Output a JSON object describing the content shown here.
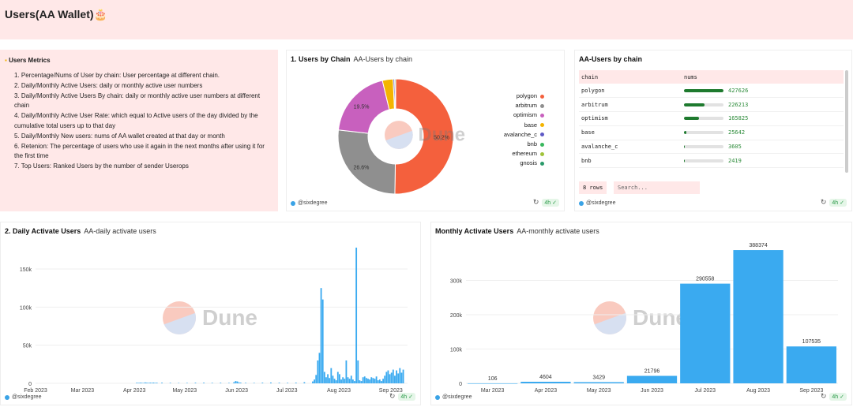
{
  "app": {
    "title": "Users(AA Wallet)🎂"
  },
  "metrics": {
    "title": "Users Metrics",
    "items": [
      "1. Percentage/Nums of User by chain: User percentage at different chain.",
      "2. Daily/Monthly Active Users: daily or monthly active user numbers",
      "3. Daily/Monthly Active Users By chain: daily or monthly active user numbers at different chain",
      "4. Daily/Monthly Active User Rate: which equal to Active users of the day divided by the cumulative total users up to that day",
      "5. Daily/Monthly New users: nums of AA wallet created at that day or month",
      "6. Retenion: The percentage of users who use it again in the next months after using it for the first time",
      "7. Top Users: Ranked Users by the number of sender Userops"
    ]
  },
  "common": {
    "user": "@sixdegree",
    "age": "4h",
    "watermark": "Dune"
  },
  "pie_card": {
    "title": "1. Users by Chain",
    "subtitle": "AA-Users by chain",
    "legend": [
      {
        "name": "polygon",
        "color": "#f4603d"
      },
      {
        "name": "arbitrum",
        "color": "#8f8f8f"
      },
      {
        "name": "optimism",
        "color": "#c860be"
      },
      {
        "name": "base",
        "color": "#f4b400"
      },
      {
        "name": "avalanche_c",
        "color": "#5e5ac6"
      },
      {
        "name": "bnb",
        "color": "#39b85e"
      },
      {
        "name": "ethereum",
        "color": "#a0c33a"
      },
      {
        "name": "gnosis",
        "color": "#2a9a6a"
      }
    ]
  },
  "table_card": {
    "title": "AA-Users by chain",
    "columns": [
      "chain",
      "nums"
    ],
    "rows": [
      {
        "chain": "polygon",
        "nums": "427626",
        "frac": 1.0
      },
      {
        "chain": "arbitrum",
        "nums": "226213",
        "frac": 0.529
      },
      {
        "chain": "optimism",
        "nums": "165825",
        "frac": 0.388
      },
      {
        "chain": "base",
        "nums": "25642",
        "frac": 0.06
      },
      {
        "chain": "avalanche_c",
        "nums": "3605",
        "frac": 0.008
      },
      {
        "chain": "bnb",
        "nums": "2419",
        "frac": 0.006
      }
    ],
    "rows_label": "8 rows",
    "search_placeholder": "Search..."
  },
  "daily_card": {
    "title": "2. Daily Activate Users",
    "subtitle": "AA-daily activate users"
  },
  "monthly_card": {
    "title": "Monthly Activate Users",
    "subtitle": "AA-monthly activate users"
  },
  "chart_data": [
    {
      "type": "pie",
      "title": "1. Users by Chain",
      "categories": [
        "polygon",
        "arbitrum",
        "optimism",
        "base",
        "avalanche_c",
        "bnb",
        "ethereum",
        "gnosis"
      ],
      "values": [
        427626,
        226213,
        165825,
        25642,
        3605,
        2419,
        0,
        0
      ],
      "labels": [
        "50.2%",
        "26.6%",
        "19.5%"
      ]
    },
    {
      "type": "bar",
      "title": "2. Daily Activate Users",
      "x_ticks": [
        "Feb 2023",
        "Mar 2023",
        "Apr 2023",
        "May 2023",
        "Jun 2023",
        "Jul 2023",
        "Aug 2023",
        "Sep 2023"
      ],
      "y_ticks": [
        "0",
        "50k",
        "100k",
        "150k"
      ],
      "ylim": [
        0,
        180000
      ],
      "xlim_days": [
        0,
        222
      ],
      "values": [
        [
          60,
          800
        ],
        [
          61,
          600
        ],
        [
          62,
          900
        ],
        [
          63,
          700
        ],
        [
          64,
          500
        ],
        [
          65,
          1200
        ],
        [
          66,
          800
        ],
        [
          67,
          600
        ],
        [
          68,
          900
        ],
        [
          69,
          700
        ],
        [
          70,
          1000
        ],
        [
          71,
          600
        ],
        [
          72,
          800
        ],
        [
          75,
          900
        ],
        [
          80,
          700
        ],
        [
          85,
          500
        ],
        [
          90,
          600
        ],
        [
          95,
          800
        ],
        [
          100,
          900
        ],
        [
          105,
          700
        ],
        [
          110,
          800
        ],
        [
          115,
          600
        ],
        [
          118,
          1500
        ],
        [
          119,
          3000
        ],
        [
          120,
          2500
        ],
        [
          121,
          1200
        ],
        [
          122,
          900
        ],
        [
          125,
          700
        ],
        [
          130,
          600
        ],
        [
          135,
          900
        ],
        [
          140,
          1100
        ],
        [
          145,
          800
        ],
        [
          150,
          700
        ],
        [
          155,
          900
        ],
        [
          160,
          1500
        ],
        [
          165,
          2500
        ],
        [
          166,
          5000
        ],
        [
          167,
          11000
        ],
        [
          168,
          30000
        ],
        [
          169,
          40000
        ],
        [
          170,
          125000
        ],
        [
          171,
          110000
        ],
        [
          172,
          15000
        ],
        [
          173,
          8000
        ],
        [
          174,
          12000
        ],
        [
          175,
          7000
        ],
        [
          176,
          20000
        ],
        [
          177,
          10000
        ],
        [
          178,
          6000
        ],
        [
          179,
          4000
        ],
        [
          180,
          15000
        ],
        [
          181,
          12000
        ],
        [
          182,
          5000
        ],
        [
          183,
          8000
        ],
        [
          184,
          6000
        ],
        [
          185,
          30000
        ],
        [
          186,
          8000
        ],
        [
          187,
          6000
        ],
        [
          188,
          10000
        ],
        [
          189,
          5000
        ],
        [
          190,
          3000
        ],
        [
          191,
          178000
        ],
        [
          192,
          30000
        ],
        [
          193,
          4000
        ],
        [
          194,
          3000
        ],
        [
          195,
          8000
        ],
        [
          196,
          9000
        ],
        [
          197,
          7000
        ],
        [
          198,
          6000
        ],
        [
          199,
          5000
        ],
        [
          200,
          8000
        ],
        [
          201,
          7000
        ],
        [
          202,
          6000
        ],
        [
          203,
          9000
        ],
        [
          204,
          4000
        ],
        [
          205,
          5000
        ],
        [
          206,
          3000
        ],
        [
          207,
          6000
        ],
        [
          208,
          10000
        ],
        [
          209,
          15000
        ],
        [
          210,
          17000
        ],
        [
          211,
          12000
        ],
        [
          212,
          14000
        ],
        [
          213,
          18000
        ],
        [
          214,
          10000
        ],
        [
          215,
          17000
        ],
        [
          216,
          13000
        ],
        [
          217,
          20000
        ],
        [
          218,
          14000
        ],
        [
          219,
          18000
        ]
      ],
      "values_format": "[day_index_from_Feb_1_2023, users]"
    },
    {
      "type": "bar",
      "title": "Monthly Activate Users",
      "categories": [
        "Mar 2023",
        "Apr 2023",
        "May 2023",
        "Jun 2023",
        "Jul 2023",
        "Aug 2023",
        "Sep 2023"
      ],
      "values": [
        106,
        4604,
        3429,
        21796,
        290558,
        388374,
        107535
      ],
      "y_ticks": [
        "0",
        "100k",
        "200k",
        "300k"
      ],
      "ylim": [
        0,
        400000
      ]
    }
  ]
}
